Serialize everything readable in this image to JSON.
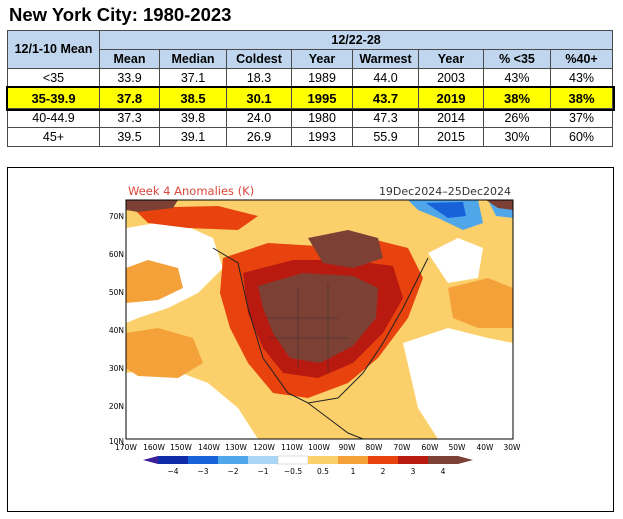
{
  "title": "New York City: 1980-2023",
  "table": {
    "row_header": "12/1-10 Mean",
    "group_header": "12/22-28",
    "columns": [
      "Mean",
      "Median",
      "Coldest",
      "Year",
      "Warmest",
      "Year",
      "% <35",
      "%40+"
    ],
    "rows": [
      {
        "label": "<35",
        "cells": [
          "33.9",
          "37.1",
          "18.3",
          "1989",
          "44.0",
          "2003",
          "43%",
          "43%"
        ]
      },
      {
        "label": "35-39.9",
        "cells": [
          "37.8",
          "38.5",
          "30.1",
          "1995",
          "43.7",
          "2019",
          "38%",
          "38%"
        ]
      },
      {
        "label": "40-44.9",
        "cells": [
          "37.3",
          "39.8",
          "24.0",
          "1980",
          "47.3",
          "2014",
          "26%",
          "37%"
        ]
      },
      {
        "label": "45+",
        "cells": [
          "39.5",
          "39.1",
          "26.9",
          "1993",
          "55.9",
          "2015",
          "30%",
          "60%"
        ]
      }
    ]
  },
  "map": {
    "title": "Week 4 Anomalies (K)",
    "dates": "19Dec2024–25Dec2024",
    "lat_labels": [
      "70N",
      "60N",
      "50N",
      "40N",
      "30N",
      "20N",
      "10N"
    ],
    "lon_labels": [
      "170W",
      "160W",
      "150W",
      "140W",
      "130W",
      "120W",
      "110W",
      "100W",
      "90W",
      "80W",
      "70W",
      "60W",
      "50W",
      "40W",
      "30W"
    ],
    "colorbar_labels": [
      "−4",
      "−3",
      "−2",
      "−1",
      "−0.5",
      "0.5",
      "1",
      "2",
      "3",
      "4"
    ],
    "colors": {
      "warm1": "#fbd06a",
      "warm2": "#f5a13a",
      "warm3": "#e8420e",
      "warm4": "#b81a10",
      "warm5": "#7c4134",
      "cool1": "#a9d7f5",
      "cool2": "#4fa6e8",
      "cool3": "#1761d9",
      "cool4": "#0f2ca8",
      "cool5": "#3b1e9a",
      "title": "#d9473a"
    }
  }
}
